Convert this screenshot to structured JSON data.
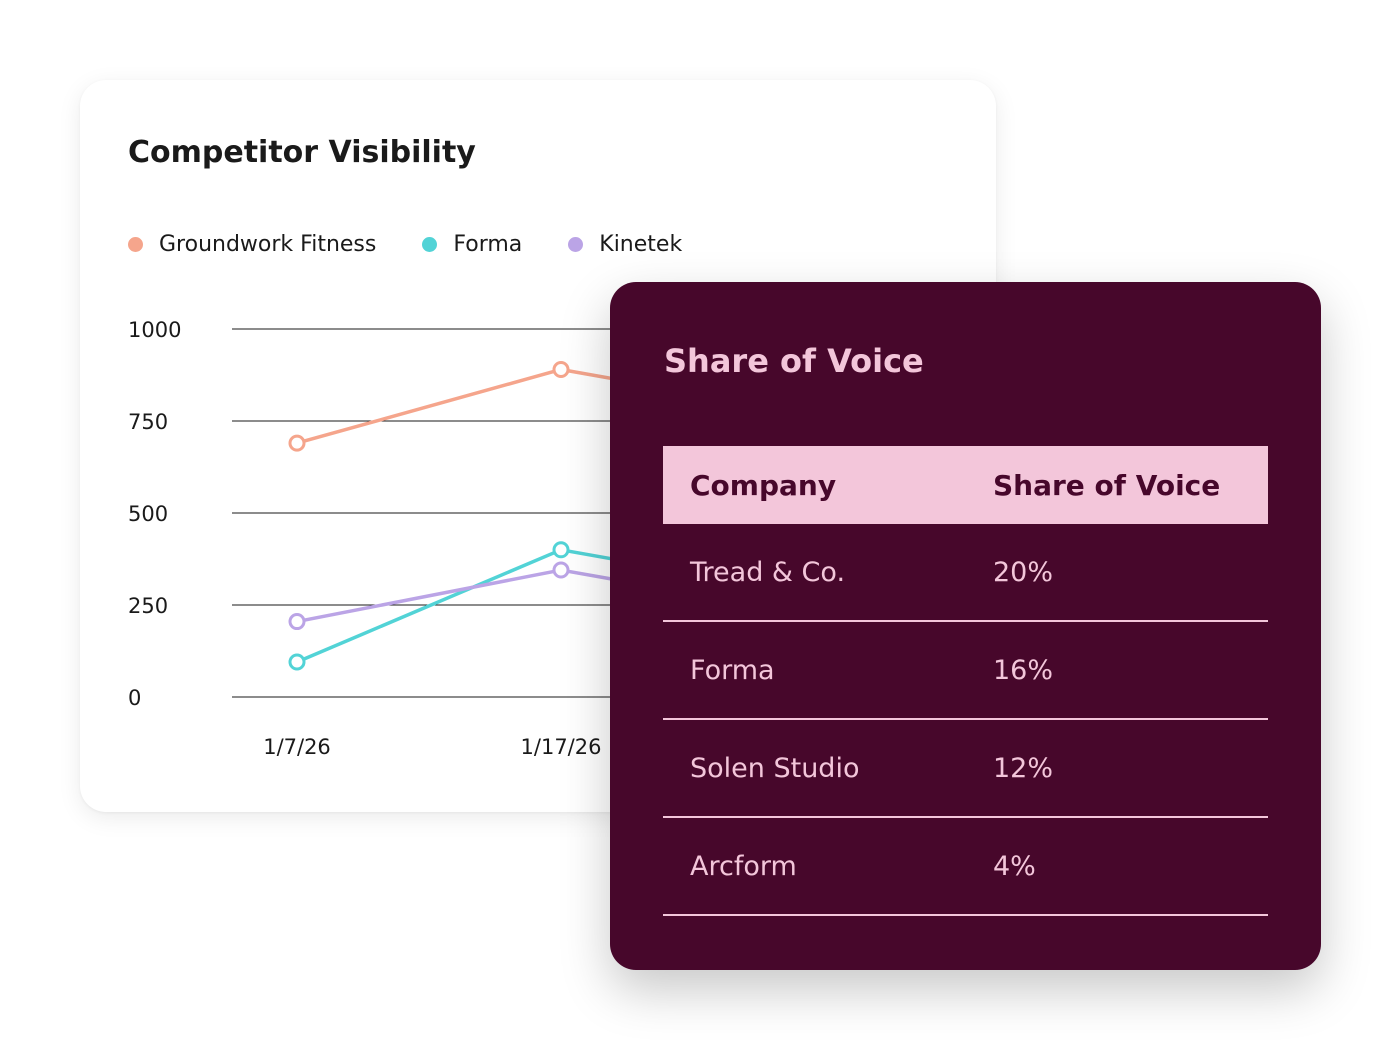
{
  "chart_card": {
    "title": "Competitor Visibility"
  },
  "chart_data": {
    "type": "line",
    "title": "Competitor Visibility",
    "xlabel": "",
    "ylabel": "",
    "ylim": [
      0,
      1000
    ],
    "yticks": [
      "1000",
      "750",
      "500",
      "250",
      "0"
    ],
    "x": [
      "1/7/26",
      "1/17/26"
    ],
    "grid": true,
    "legend_position": "top-left",
    "series": [
      {
        "name": "Groundwork Fitness",
        "color": "#f5a58c",
        "values": [
          690,
          890
        ]
      },
      {
        "name": "Forma",
        "color": "#52d3d6",
        "values": [
          95,
          400
        ]
      },
      {
        "name": "Kinetek",
        "color": "#bba4e6",
        "values": [
          205,
          345
        ]
      }
    ]
  },
  "share_of_voice": {
    "title": "Share of Voice",
    "columns": [
      "Company",
      "Share of Voice"
    ],
    "rows": [
      {
        "company": "Tread & Co.",
        "share": "20%"
      },
      {
        "company": "Forma",
        "share": "16%"
      },
      {
        "company": "Solen Studio",
        "share": "12%"
      },
      {
        "company": "Arcform",
        "share": "4%"
      }
    ],
    "colors": {
      "background": "#47072b",
      "accent": "#f3c6da"
    }
  }
}
